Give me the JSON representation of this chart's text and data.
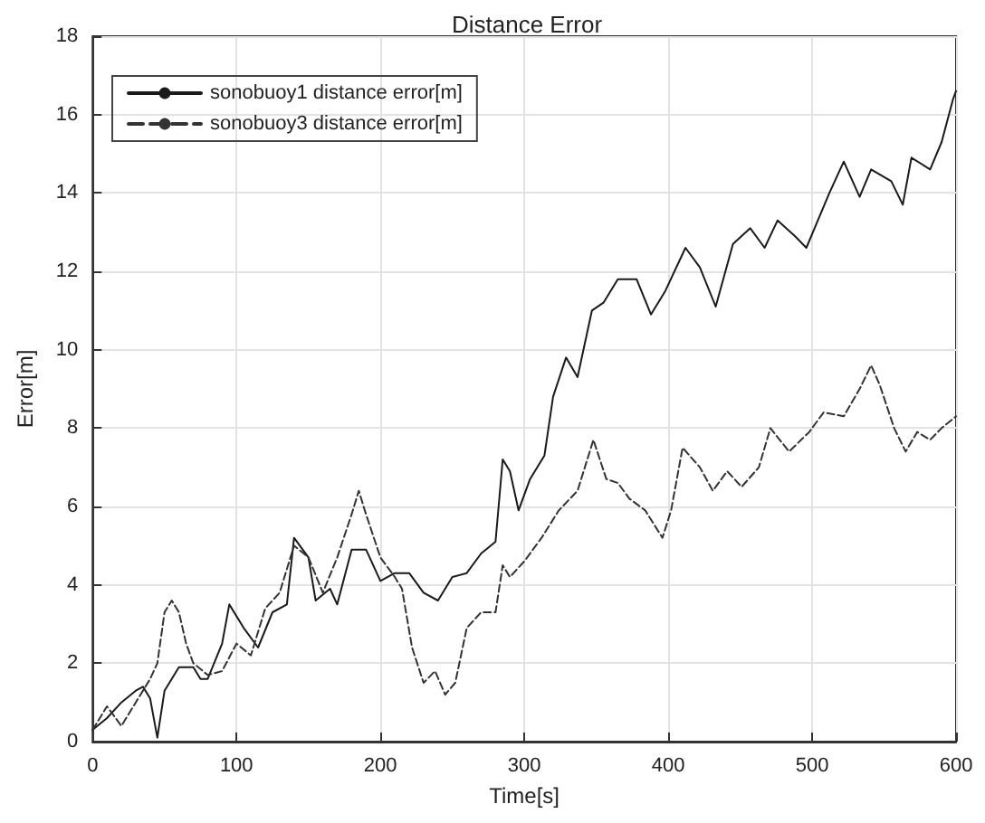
{
  "chart_data": {
    "type": "line",
    "title": "Distance Error",
    "xlabel": "Time[s]",
    "ylabel": "Error[m]",
    "xlim": [
      0,
      600
    ],
    "xticks": [
      0,
      100,
      200,
      300,
      400,
      500,
      600
    ],
    "ylim": [
      0,
      18
    ],
    "yticks": [
      0,
      2,
      4,
      6,
      8,
      10,
      12,
      14,
      16,
      18
    ],
    "grid": true,
    "legend": "top left",
    "marker": "none",
    "series": [
      {
        "name": "sonobuoy1 distance error[m]",
        "color": "#1a1a1a",
        "line_style": "solid",
        "x": [
          0,
          10,
          20,
          30,
          35,
          40,
          45,
          50,
          60,
          70,
          75,
          80,
          90,
          95,
          105,
          115,
          125,
          135,
          140,
          150,
          155,
          165,
          170,
          180,
          190,
          200,
          210,
          220,
          230,
          240,
          250,
          260,
          270,
          280,
          285,
          290,
          296,
          304,
          314,
          320,
          329,
          337,
          347,
          355,
          365,
          378,
          388,
          398,
          412,
          422,
          433,
          445,
          457,
          467,
          476,
          488,
          496,
          504,
          512,
          522,
          533,
          541,
          555,
          563,
          569,
          582,
          590,
          598,
          600
        ],
        "values": [
          0.3,
          0.6,
          1.0,
          1.3,
          1.4,
          1.1,
          0.1,
          1.3,
          1.9,
          1.9,
          1.6,
          1.6,
          2.5,
          3.5,
          2.9,
          2.4,
          3.3,
          3.5,
          5.2,
          4.7,
          3.6,
          3.9,
          3.5,
          4.9,
          4.9,
          4.1,
          4.3,
          4.3,
          3.8,
          3.6,
          4.2,
          4.3,
          4.8,
          5.1,
          7.2,
          6.9,
          5.9,
          6.7,
          7.3,
          8.8,
          9.8,
          9.3,
          11.0,
          11.2,
          11.8,
          11.8,
          10.9,
          11.5,
          12.6,
          12.1,
          11.1,
          12.7,
          13.1,
          12.6,
          13.3,
          12.9,
          12.6,
          13.3,
          14.0,
          14.8,
          13.9,
          14.6,
          14.3,
          13.7,
          14.9,
          14.6,
          15.3,
          16.4,
          16.6
        ]
      },
      {
        "name": "sonobuoy3 distance error[m]",
        "color": "#333333",
        "line_style": "dashed",
        "x": [
          0,
          10,
          20,
          30,
          40,
          45,
          50,
          55,
          60,
          65,
          70,
          80,
          90,
          100,
          110,
          120,
          130,
          140,
          150,
          160,
          170,
          180,
          185,
          190,
          200,
          210,
          215,
          222,
          230,
          238,
          245,
          252,
          260,
          270,
          280,
          285,
          290,
          300,
          312,
          324,
          337,
          348,
          357,
          365,
          373,
          384,
          396,
          402,
          410,
          422,
          431,
          441,
          451,
          463,
          471,
          484,
          498,
          508,
          522,
          533,
          541,
          547,
          557,
          565,
          573,
          582,
          590,
          600
        ],
        "values": [
          0.3,
          0.9,
          0.4,
          1.0,
          1.6,
          2.0,
          3.3,
          3.6,
          3.3,
          2.5,
          2.0,
          1.7,
          1.8,
          2.5,
          2.2,
          3.4,
          3.8,
          5.0,
          4.7,
          3.8,
          4.7,
          5.8,
          6.4,
          5.8,
          4.7,
          4.2,
          3.9,
          2.4,
          1.5,
          1.8,
          1.2,
          1.5,
          2.9,
          3.3,
          3.3,
          4.5,
          4.2,
          4.6,
          5.2,
          5.9,
          6.4,
          7.7,
          6.7,
          6.6,
          6.2,
          5.9,
          5.2,
          5.9,
          7.5,
          7.0,
          6.4,
          6.9,
          6.5,
          7.0,
          8.0,
          7.4,
          7.9,
          8.4,
          8.3,
          9.0,
          9.6,
          9.1,
          8.0,
          7.4,
          7.9,
          7.7,
          8.0,
          8.3
        ]
      }
    ]
  }
}
